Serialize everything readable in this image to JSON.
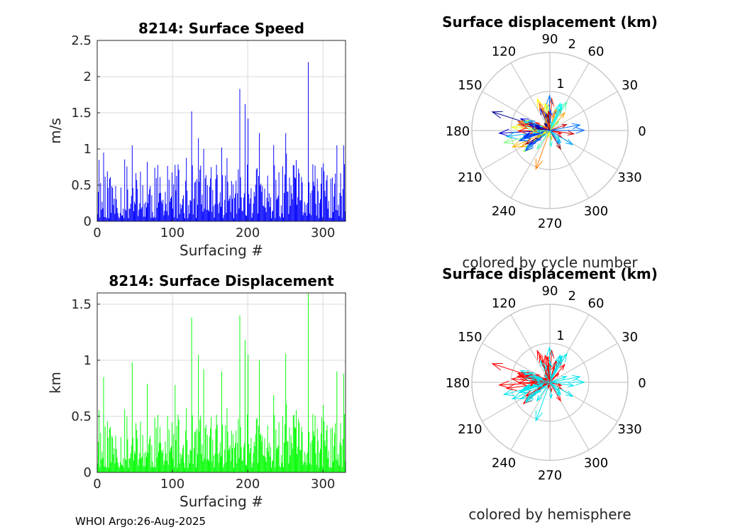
{
  "footer": "WHOI Argo:26-Aug-2025",
  "colors": {
    "speed_bar": "#0000ff",
    "displacement_bar": "#00ff00",
    "northern": "#ff0000",
    "southern": "#00e5ee",
    "grid": "#d9d9d9",
    "polar_grid": "#c8c8c8"
  },
  "chart_data": [
    {
      "id": "speed",
      "type": "bar",
      "title": "8214: Surface Speed",
      "xlabel": "Surfacing #",
      "ylabel": "m/s",
      "xlim": [
        0,
        330
      ],
      "ylim": [
        0,
        2.5
      ],
      "xticks": [
        0,
        100,
        200,
        300
      ],
      "yticks": [
        0,
        0.5,
        1,
        1.5,
        2,
        2.5
      ],
      "ytick_labels": [
        "0",
        "0.5",
        "1",
        "1.5",
        "2",
        "2.5"
      ],
      "n_points": 330,
      "peaks": [
        {
          "x": 8,
          "y": 0.95
        },
        {
          "x": 46,
          "y": 1.05
        },
        {
          "x": 66,
          "y": 0.82
        },
        {
          "x": 103,
          "y": 0.78
        },
        {
          "x": 125,
          "y": 1.52
        },
        {
          "x": 134,
          "y": 1.15
        },
        {
          "x": 141,
          "y": 1.0
        },
        {
          "x": 165,
          "y": 1.02
        },
        {
          "x": 189,
          "y": 1.83
        },
        {
          "x": 196,
          "y": 1.62
        },
        {
          "x": 200,
          "y": 1.42
        },
        {
          "x": 215,
          "y": 1.22
        },
        {
          "x": 250,
          "y": 1.22
        },
        {
          "x": 280,
          "y": 2.2
        },
        {
          "x": 300,
          "y": 0.8
        },
        {
          "x": 318,
          "y": 1.05
        },
        {
          "x": 327,
          "y": 1.05
        }
      ],
      "series_values": "generated-from-peaks"
    },
    {
      "id": "displacement",
      "type": "bar",
      "title": "8214: Surface Displacement",
      "xlabel": "Surfacing #",
      "ylabel": "km",
      "xlim": [
        0,
        330
      ],
      "ylim": [
        0,
        1.6
      ],
      "xticks": [
        0,
        100,
        200,
        300
      ],
      "yticks": [
        0,
        0.5,
        1,
        1.5
      ],
      "ytick_labels": [
        "0",
        "0.5",
        "1",
        "1.5"
      ],
      "n_points": 330,
      "peaks": [
        {
          "x": 8,
          "y": 0.85
        },
        {
          "x": 46,
          "y": 0.98
        },
        {
          "x": 66,
          "y": 0.79
        },
        {
          "x": 103,
          "y": 0.78
        },
        {
          "x": 125,
          "y": 1.38
        },
        {
          "x": 134,
          "y": 1.05
        },
        {
          "x": 141,
          "y": 0.92
        },
        {
          "x": 165,
          "y": 0.9
        },
        {
          "x": 189,
          "y": 1.4
        },
        {
          "x": 196,
          "y": 1.18
        },
        {
          "x": 200,
          "y": 1.05
        },
        {
          "x": 215,
          "y": 1.0
        },
        {
          "x": 250,
          "y": 1.06
        },
        {
          "x": 280,
          "y": 1.6
        },
        {
          "x": 300,
          "y": 0.6
        },
        {
          "x": 318,
          "y": 0.9
        },
        {
          "x": 327,
          "y": 0.88
        }
      ]
    },
    {
      "id": "polar_cycle",
      "type": "polar-quiver",
      "title": "Surface displacement (km)",
      "caption": "colored by cycle number",
      "rmax": 2,
      "ring_labels": [
        "1",
        "2"
      ],
      "angle_labels": [
        "0",
        "30",
        "60",
        "90",
        "120",
        "150",
        "180",
        "210",
        "240",
        "270",
        "300",
        "330"
      ],
      "color_scale": "jet",
      "arrows": [
        {
          "angle": 162,
          "r": 1.55,
          "c": 0.02
        },
        {
          "angle": 183,
          "r": 1.3,
          "c": 0.08
        },
        {
          "angle": 195,
          "r": 1.22,
          "c": 0.5
        },
        {
          "angle": 204,
          "r": 1.05,
          "c": 0.7
        },
        {
          "angle": 250,
          "r": 1.05,
          "c": 0.75
        },
        {
          "angle": 188,
          "r": 1.12,
          "c": 0.3
        },
        {
          "angle": 210,
          "r": 0.85,
          "c": 0.72
        },
        {
          "angle": 175,
          "r": 0.98,
          "c": 0.6
        },
        {
          "angle": 167,
          "r": 0.8,
          "c": 0.12
        },
        {
          "angle": 155,
          "r": 0.62,
          "c": 0.55
        },
        {
          "angle": 75,
          "r": 0.55,
          "c": 0.2
        },
        {
          "angle": 100,
          "r": 0.7,
          "c": 0.62
        },
        {
          "angle": 20,
          "r": 0.45,
          "c": 0.93
        },
        {
          "angle": 352,
          "r": 0.62,
          "c": 0.92
        },
        {
          "angle": 330,
          "r": 0.35,
          "c": 0.88
        },
        {
          "angle": 300,
          "r": 0.55,
          "c": 0.98
        },
        {
          "angle": 235,
          "r": 0.58,
          "c": 0.45
        },
        {
          "angle": 45,
          "r": 0.32,
          "c": 0.5
        }
      ],
      "random_arrows": 110
    },
    {
      "id": "polar_hemisphere",
      "type": "polar-quiver",
      "title": "Surface displacement (km)",
      "caption": "colored by hemisphere",
      "rmax": 2,
      "ring_labels": [
        "1",
        "2"
      ],
      "angle_labels": [
        "0",
        "30",
        "60",
        "90",
        "120",
        "150",
        "180",
        "210",
        "240",
        "270",
        "300",
        "330"
      ],
      "arrows": [
        {
          "angle": 162,
          "r": 1.55,
          "c": 0.9
        },
        {
          "angle": 183,
          "r": 1.3,
          "c": 0.9
        },
        {
          "angle": 195,
          "r": 1.22,
          "c": 0.2
        },
        {
          "angle": 204,
          "r": 1.05,
          "c": 0.2
        },
        {
          "angle": 250,
          "r": 1.05,
          "c": 0.2
        },
        {
          "angle": 188,
          "r": 1.12,
          "c": 0.9
        },
        {
          "angle": 210,
          "r": 0.85,
          "c": 0.2
        },
        {
          "angle": 175,
          "r": 0.98,
          "c": 0.9
        },
        {
          "angle": 167,
          "r": 0.8,
          "c": 0.9
        },
        {
          "angle": 155,
          "r": 0.62,
          "c": 0.9
        },
        {
          "angle": 75,
          "r": 0.55,
          "c": 0.2
        },
        {
          "angle": 100,
          "r": 0.7,
          "c": 0.9
        },
        {
          "angle": 20,
          "r": 0.45,
          "c": 0.2
        },
        {
          "angle": 352,
          "r": 0.62,
          "c": 0.2
        },
        {
          "angle": 330,
          "r": 0.35,
          "c": 0.9
        },
        {
          "angle": 300,
          "r": 0.55,
          "c": 0.9
        },
        {
          "angle": 235,
          "r": 0.58,
          "c": 0.2
        },
        {
          "angle": 45,
          "r": 0.32,
          "c": 0.9
        }
      ],
      "random_arrows": 110
    }
  ]
}
